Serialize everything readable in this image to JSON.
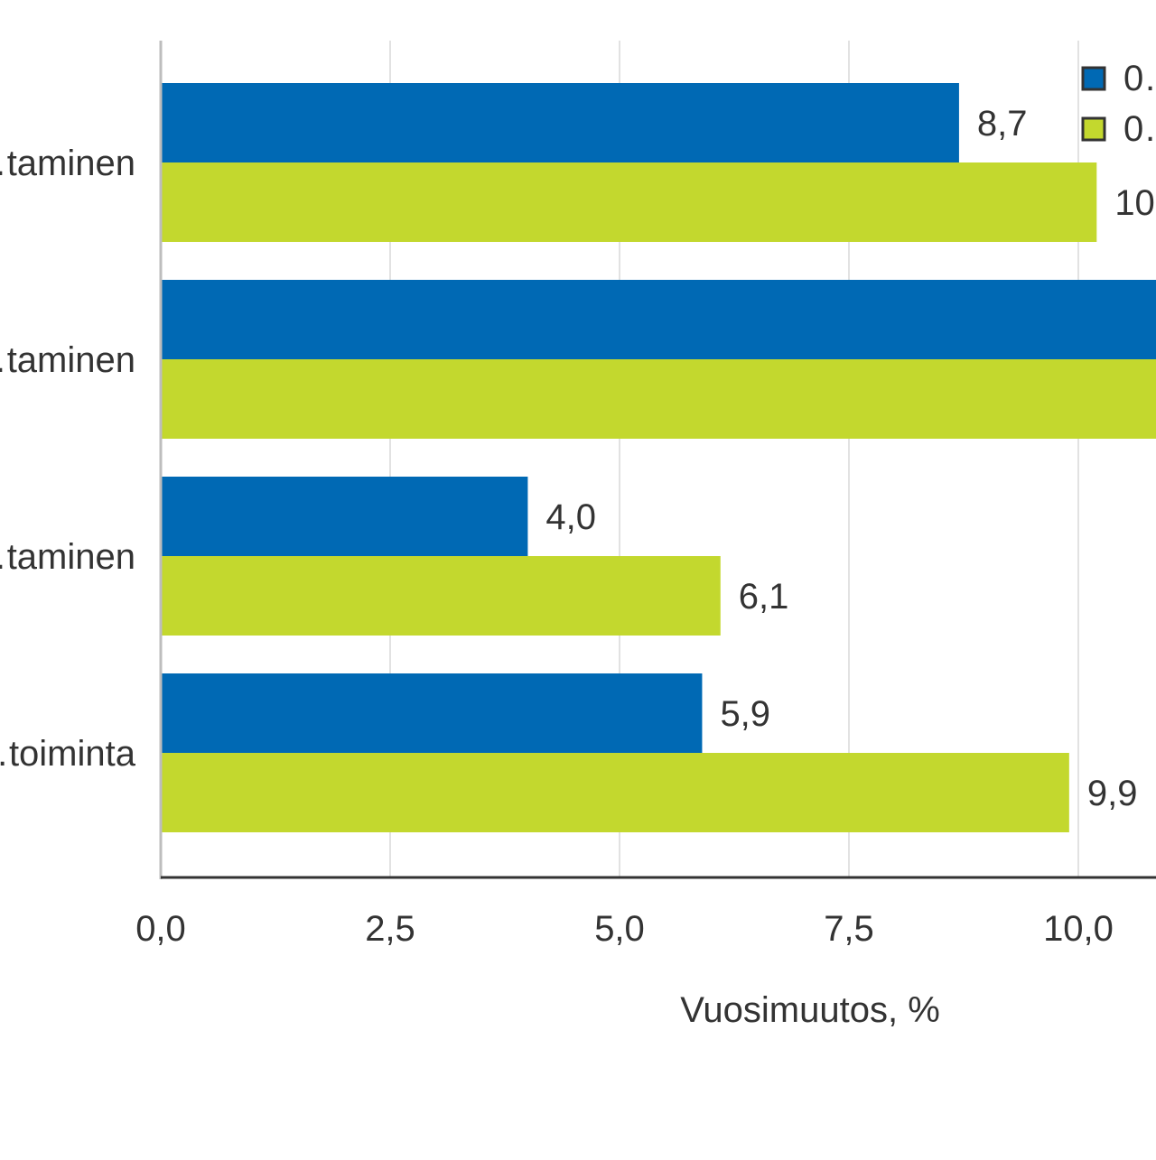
{
  "chart_data": {
    "type": "bar",
    "orientation": "horizontal",
    "categories": [
      "…taminen",
      "…taminen",
      "…taminen",
      "…toiminta"
    ],
    "series": [
      {
        "name": "0…",
        "color": "#0069b4",
        "values": [
          8.7,
          12.0,
          4.0,
          5.9
        ],
        "value_labels": [
          "8,7",
          "",
          "4,0",
          "5,9"
        ]
      },
      {
        "name": "0…",
        "color": "#c3d82e",
        "values": [
          10.2,
          12.0,
          6.1,
          9.9
        ],
        "value_labels": [
          "10",
          "",
          "6,1",
          "9,9"
        ]
      }
    ],
    "xlabel": "Vuosimuutos, %",
    "ylabel": "",
    "xlim": [
      0,
      10.8
    ],
    "xticks": [
      0,
      2.5,
      5.0,
      7.5,
      10.0
    ],
    "xtick_labels": [
      "0,0",
      "2,5",
      "5,0",
      "7,5",
      "10,0"
    ],
    "grid": true,
    "legend_position": "top-right"
  }
}
